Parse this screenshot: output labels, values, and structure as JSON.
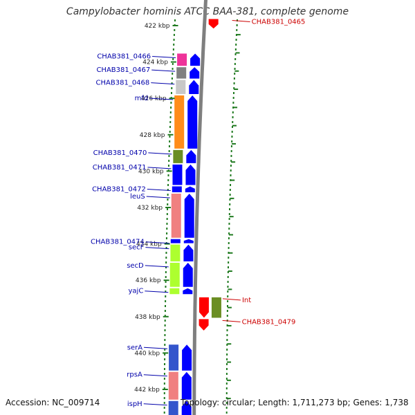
{
  "title": "Campylobacter hominis ATCC BAA-381, complete genome",
  "footer": {
    "accession": "Accession: NC_009714",
    "topology": "Topology: circular; Length: 1,711,273 bp; Genes: 1,738"
  },
  "colors": {
    "backbone": "#7f7f7f",
    "ruler_tick": "#1f7a1f",
    "strand_arrow": "#0000ff",
    "label_plus": "#0000aa",
    "label_minus": "#cc0000"
  },
  "scale_unit": "kbp",
  "scale_ticks": [
    422,
    424,
    426,
    428,
    430,
    432,
    434,
    436,
    438,
    440,
    442
  ],
  "genes_plus": [
    {
      "label": "CHAB381_0466",
      "start": 423.5,
      "end": 424.25,
      "color": "#ee3399"
    },
    {
      "label": "CHAB381_0467",
      "start": 424.25,
      "end": 424.95,
      "color": "#808080"
    },
    {
      "label": "CHAB381_0468",
      "start": 424.95,
      "end": 425.8,
      "color": "#c8c8c8"
    },
    {
      "label": "mfd",
      "start": 425.8,
      "end": 428.8,
      "color": "#ff8c1a"
    },
    {
      "label": "CHAB381_0470",
      "start": 428.8,
      "end": 429.6,
      "color": "#6b8e23"
    },
    {
      "label": "CHAB381_0471",
      "start": 429.6,
      "end": 430.8,
      "color": "#0000ff"
    },
    {
      "label": "CHAB381_0472",
      "start": 430.8,
      "end": 431.2,
      "color": "#0000ff"
    },
    {
      "label": "leuS",
      "start": 431.2,
      "end": 433.7,
      "color": "#f08080"
    },
    {
      "label": "CHAB381_0474",
      "start": 433.7,
      "end": 434.0,
      "color": "#0000ff"
    },
    {
      "label": "secF",
      "start": 434.0,
      "end": 435.0,
      "color": "#adff2f"
    },
    {
      "label": "secD",
      "start": 435.0,
      "end": 436.4,
      "color": "#adff2f"
    },
    {
      "label": "yajC",
      "start": 436.4,
      "end": 436.8,
      "color": "#adff2f"
    },
    {
      "label": "serA",
      "start": 439.5,
      "end": 441.0,
      "color": "#3355cc"
    },
    {
      "label": "rpsA",
      "start": 441.0,
      "end": 442.6,
      "color": "#f08080"
    },
    {
      "label": "ispH",
      "start": 442.6,
      "end": 443.5,
      "color": "#3355cc"
    }
  ],
  "genes_minus": [
    {
      "label": "CHAB381_0465",
      "start": 421.6,
      "end": 422.2,
      "color": "#ff0000"
    },
    {
      "label": "Int",
      "start": 436.9,
      "end": 438.1,
      "color": "#ff0000"
    },
    {
      "label": "CHAB381_0479",
      "start": 438.1,
      "end": 438.8,
      "color": "#ff0000"
    }
  ]
}
